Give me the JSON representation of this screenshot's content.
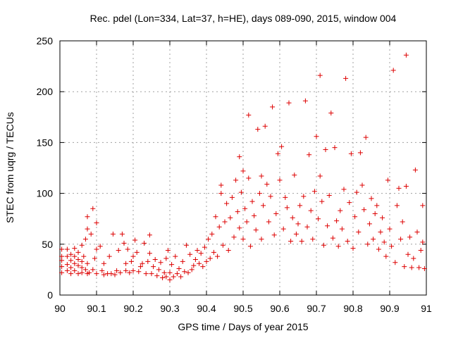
{
  "chart_data": {
    "type": "scatter",
    "title": "Rec. pdel (Lon=334, Lat=37, h=HE), days 089-090, 2015, window 004",
    "xlabel": "GPS time / Days of year 2015",
    "ylabel": "STEC from uqrg / TECUs",
    "xlim": [
      90,
      91
    ],
    "ylim": [
      0,
      250
    ],
    "xticks": [
      "90",
      "90.1",
      "90.2",
      "90.3",
      "90.4",
      "90.5",
      "90.6",
      "90.7",
      "90.8",
      "90.9",
      "91"
    ],
    "yticks": [
      "0",
      "50",
      "100",
      "150",
      "200",
      "250"
    ],
    "grid": true,
    "marker": "+",
    "series": [
      {
        "name": "STEC",
        "color": "#dd0000",
        "points": [
          [
            90.005,
            22
          ],
          [
            90.005,
            28
          ],
          [
            90.005,
            34
          ],
          [
            90.005,
            38
          ],
          [
            90.005,
            45
          ],
          [
            90.02,
            24
          ],
          [
            90.02,
            30
          ],
          [
            90.02,
            38
          ],
          [
            90.02,
            45
          ],
          [
            90.03,
            21
          ],
          [
            90.03,
            27
          ],
          [
            90.03,
            34
          ],
          [
            90.03,
            40
          ],
          [
            90.04,
            24
          ],
          [
            90.04,
            31
          ],
          [
            90.04,
            38
          ],
          [
            90.04,
            46
          ],
          [
            90.05,
            21
          ],
          [
            90.05,
            29
          ],
          [
            90.05,
            35
          ],
          [
            90.05,
            42
          ],
          [
            90.06,
            22
          ],
          [
            90.06,
            27
          ],
          [
            90.06,
            33
          ],
          [
            90.06,
            49
          ],
          [
            90.065,
            38
          ],
          [
            90.07,
            25
          ],
          [
            90.07,
            55
          ],
          [
            90.075,
            21
          ],
          [
            90.075,
            31
          ],
          [
            90.075,
            65
          ],
          [
            90.075,
            77
          ],
          [
            90.08,
            22
          ],
          [
            90.085,
            60
          ],
          [
            90.09,
            85
          ],
          [
            90.09,
            25
          ],
          [
            90.095,
            36
          ],
          [
            90.1,
            21
          ],
          [
            90.1,
            71
          ],
          [
            90.1,
            45
          ],
          [
            90.11,
            48
          ],
          [
            90.115,
            24
          ],
          [
            90.12,
            20
          ],
          [
            90.12,
            31
          ],
          [
            90.13,
            21
          ],
          [
            90.135,
            38
          ],
          [
            90.14,
            21
          ],
          [
            90.145,
            60
          ],
          [
            90.15,
            20
          ],
          [
            90.155,
            24
          ],
          [
            90.16,
            44
          ],
          [
            90.165,
            22
          ],
          [
            90.17,
            60
          ],
          [
            90.175,
            51
          ],
          [
            90.18,
            24
          ],
          [
            90.18,
            31
          ],
          [
            90.185,
            45
          ],
          [
            90.19,
            22
          ],
          [
            90.195,
            33
          ],
          [
            90.2,
            24
          ],
          [
            90.2,
            38
          ],
          [
            90.205,
            54
          ],
          [
            90.21,
            42
          ],
          [
            90.215,
            23
          ],
          [
            90.22,
            28
          ],
          [
            90.225,
            31
          ],
          [
            90.23,
            51
          ],
          [
            90.235,
            21
          ],
          [
            90.24,
            33
          ],
          [
            90.245,
            59
          ],
          [
            90.245,
            41
          ],
          [
            90.25,
            21
          ],
          [
            90.255,
            28
          ],
          [
            90.26,
            35
          ],
          [
            90.265,
            19
          ],
          [
            90.27,
            25
          ],
          [
            90.275,
            32
          ],
          [
            90.28,
            17
          ],
          [
            90.285,
            22
          ],
          [
            90.29,
            18
          ],
          [
            90.29,
            36
          ],
          [
            90.295,
            44
          ],
          [
            90.3,
            15
          ],
          [
            90.3,
            22
          ],
          [
            90.305,
            30
          ],
          [
            90.31,
            18
          ],
          [
            90.315,
            38
          ],
          [
            90.32,
            21
          ],
          [
            90.325,
            26
          ],
          [
            90.33,
            18
          ],
          [
            90.335,
            33
          ],
          [
            90.34,
            23
          ],
          [
            90.345,
            49
          ],
          [
            90.35,
            22
          ],
          [
            90.355,
            40
          ],
          [
            90.36,
            25
          ],
          [
            90.365,
            29
          ],
          [
            90.37,
            35
          ],
          [
            90.375,
            44
          ],
          [
            90.38,
            31
          ],
          [
            90.385,
            41
          ],
          [
            90.39,
            28
          ],
          [
            90.395,
            47
          ],
          [
            90.4,
            33
          ],
          [
            90.405,
            55
          ],
          [
            90.41,
            36
          ],
          [
            90.415,
            60
          ],
          [
            90.42,
            42
          ],
          [
            90.425,
            77
          ],
          [
            90.43,
            38
          ],
          [
            90.435,
            67
          ],
          [
            90.44,
            108
          ],
          [
            90.44,
            100
          ],
          [
            90.445,
            49
          ],
          [
            90.45,
            72
          ],
          [
            90.455,
            90
          ],
          [
            90.46,
            44
          ],
          [
            90.465,
            76
          ],
          [
            90.47,
            96
          ],
          [
            90.475,
            57
          ],
          [
            90.48,
            113
          ],
          [
            90.485,
            82
          ],
          [
            90.49,
            136
          ],
          [
            90.49,
            66
          ],
          [
            90.495,
            101
          ],
          [
            90.5,
            122
          ],
          [
            90.5,
            55
          ],
          [
            90.505,
            85
          ],
          [
            90.51,
            72
          ],
          [
            90.515,
            177
          ],
          [
            90.515,
            115
          ],
          [
            90.52,
            48
          ],
          [
            90.525,
            92
          ],
          [
            90.53,
            78
          ],
          [
            90.535,
            64
          ],
          [
            90.54,
            163
          ],
          [
            90.545,
            100
          ],
          [
            90.55,
            117
          ],
          [
            90.55,
            55
          ],
          [
            90.555,
            88
          ],
          [
            90.56,
            166
          ],
          [
            90.565,
            109
          ],
          [
            90.57,
            72
          ],
          [
            90.575,
            97
          ],
          [
            90.58,
            185
          ],
          [
            90.585,
            59
          ],
          [
            90.59,
            80
          ],
          [
            90.595,
            139
          ],
          [
            90.6,
            113
          ],
          [
            90.605,
            146
          ],
          [
            90.61,
            65
          ],
          [
            90.615,
            96
          ],
          [
            90.62,
            86
          ],
          [
            90.625,
            189
          ],
          [
            90.63,
            53
          ],
          [
            90.635,
            76
          ],
          [
            90.64,
            118
          ],
          [
            90.645,
            60
          ],
          [
            90.65,
            70
          ],
          [
            90.655,
            88
          ],
          [
            90.66,
            53
          ],
          [
            90.665,
            97
          ],
          [
            90.67,
            191
          ],
          [
            90.675,
            67
          ],
          [
            90.68,
            138
          ],
          [
            90.685,
            83
          ],
          [
            90.69,
            55
          ],
          [
            90.695,
            102
          ],
          [
            90.7,
            156
          ],
          [
            90.705,
            75
          ],
          [
            90.71,
            216
          ],
          [
            90.71,
            117
          ],
          [
            90.715,
            92
          ],
          [
            90.72,
            49
          ],
          [
            90.725,
            143
          ],
          [
            90.73,
            68
          ],
          [
            90.735,
            98
          ],
          [
            90.74,
            179
          ],
          [
            90.745,
            56
          ],
          [
            90.75,
            145
          ],
          [
            90.755,
            73
          ],
          [
            90.76,
            48
          ],
          [
            90.765,
            83
          ],
          [
            90.77,
            65
          ],
          [
            90.775,
            104
          ],
          [
            90.78,
            213
          ],
          [
            90.785,
            53
          ],
          [
            90.79,
            91
          ],
          [
            90.795,
            139
          ],
          [
            90.8,
            46
          ],
          [
            90.805,
            77
          ],
          [
            90.81,
            101
          ],
          [
            90.815,
            62
          ],
          [
            90.82,
            140
          ],
          [
            90.825,
            108
          ],
          [
            90.83,
            84
          ],
          [
            90.835,
            155
          ],
          [
            90.84,
            50
          ],
          [
            90.845,
            70
          ],
          [
            90.85,
            95
          ],
          [
            90.855,
            55
          ],
          [
            90.86,
            80
          ],
          [
            90.865,
            88
          ],
          [
            90.87,
            45
          ],
          [
            90.875,
            62
          ],
          [
            90.88,
            76
          ],
          [
            90.885,
            52
          ],
          [
            90.89,
            38
          ],
          [
            90.895,
            113
          ],
          [
            90.9,
            65
          ],
          [
            90.905,
            48
          ],
          [
            90.91,
            221
          ],
          [
            90.915,
            32
          ],
          [
            90.92,
            88
          ],
          [
            90.925,
            105
          ],
          [
            90.93,
            55
          ],
          [
            90.935,
            72
          ],
          [
            90.94,
            28
          ],
          [
            90.945,
            236
          ],
          [
            90.945,
            107
          ],
          [
            90.95,
            40
          ],
          [
            90.955,
            57
          ],
          [
            90.96,
            27
          ],
          [
            90.965,
            36
          ],
          [
            90.97,
            123
          ],
          [
            90.975,
            62
          ],
          [
            90.98,
            27
          ],
          [
            90.985,
            44
          ],
          [
            90.99,
            88
          ],
          [
            90.99,
            52
          ],
          [
            90.995,
            26
          ]
        ]
      }
    ]
  }
}
